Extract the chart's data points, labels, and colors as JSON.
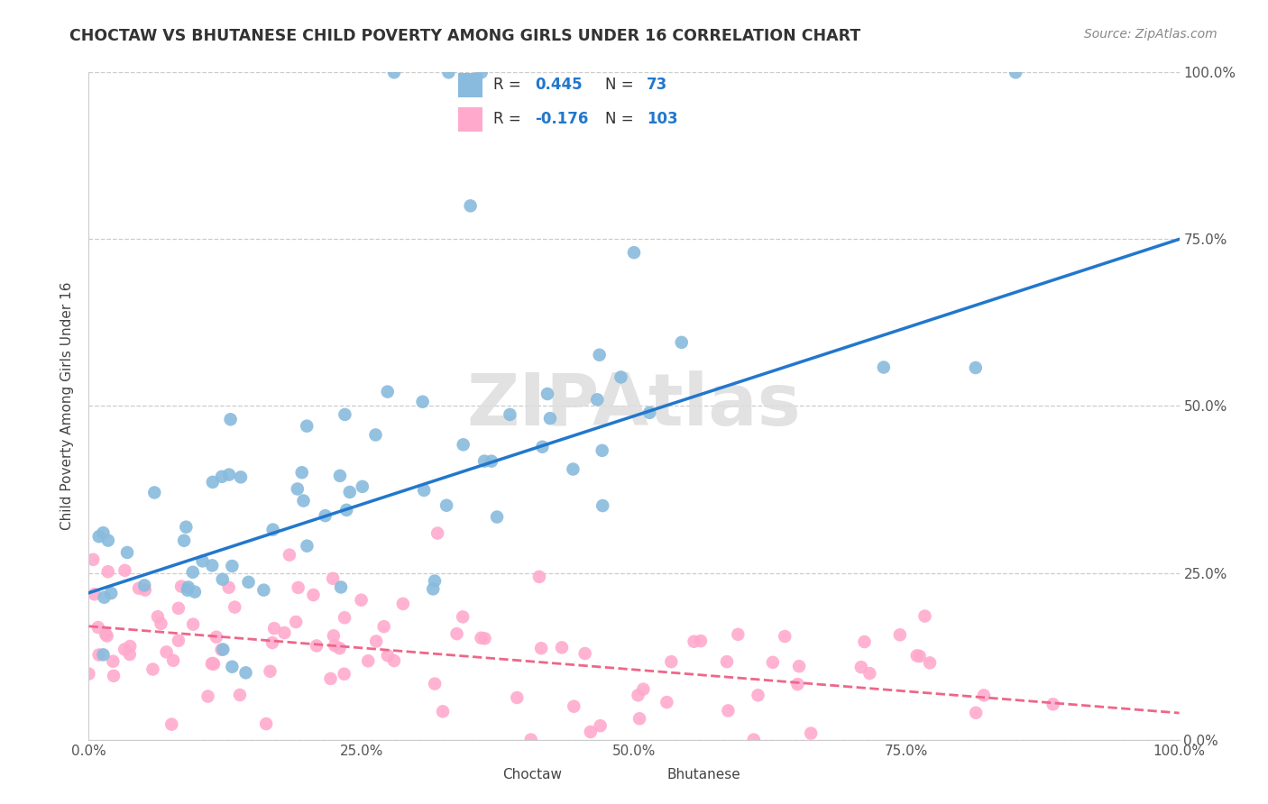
{
  "title": "CHOCTAW VS BHUTANESE CHILD POVERTY AMONG GIRLS UNDER 16 CORRELATION CHART",
  "source": "Source: ZipAtlas.com",
  "ylabel": "Child Poverty Among Girls Under 16",
  "watermark": "ZIPAtlas",
  "xlim": [
    0,
    1
  ],
  "ylim": [
    0,
    1
  ],
  "xticks": [
    0.0,
    0.25,
    0.5,
    0.75,
    1.0
  ],
  "yticks": [
    0.0,
    0.25,
    0.5,
    0.75,
    1.0
  ],
  "xticklabels": [
    "0.0%",
    "25.0%",
    "50.0%",
    "75.0%",
    "100.0%"
  ],
  "yticklabels": [
    "0.0%",
    "25.0%",
    "50.0%",
    "75.0%",
    "100.0%"
  ],
  "choctaw_color": "#88BBDD",
  "bhutanese_color": "#FFAACC",
  "choctaw_R": 0.445,
  "choctaw_N": 73,
  "bhutanese_R": -0.176,
  "bhutanese_N": 103,
  "choctaw_line_color": "#2277CC",
  "bhutanese_line_color": "#EE6688",
  "legend_color": "#2277CC",
  "background_color": "#FFFFFF",
  "grid_color": "#CCCCCC",
  "choctaw_line_x0": 0.0,
  "choctaw_line_y0": 0.22,
  "choctaw_line_x1": 1.0,
  "choctaw_line_y1": 0.75,
  "bhutanese_line_x0": 0.0,
  "bhutanese_line_y0": 0.17,
  "bhutanese_line_x1": 1.0,
  "bhutanese_line_y1": 0.04
}
